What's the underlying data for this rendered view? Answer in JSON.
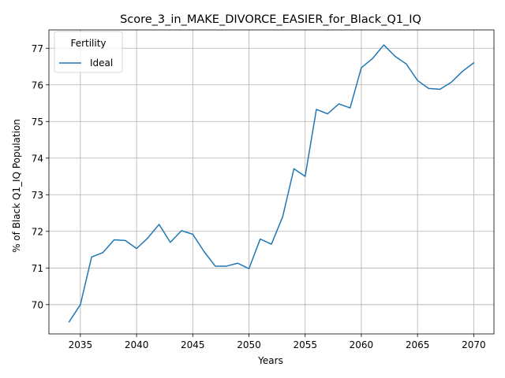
{
  "chart_data": {
    "type": "line",
    "title": "Score_3_in_MAKE_DIVORCE_EASIER_for_Black_Q1_IQ",
    "xlabel": "Years",
    "ylabel": "% of Black Q1_IQ Population",
    "xlim": [
      2032.2,
      2071.8
    ],
    "ylim": [
      69.2,
      77.5
    ],
    "xticks": [
      2035,
      2040,
      2045,
      2050,
      2055,
      2060,
      2065,
      2070
    ],
    "yticks": [
      70,
      71,
      72,
      73,
      74,
      75,
      76,
      77
    ],
    "grid": true,
    "legend": {
      "title": "Fertility",
      "placement": "top-left"
    },
    "series": [
      {
        "name": "Ideal",
        "color": "#1f77b4",
        "x": [
          2034,
          2035,
          2036,
          2037,
          2038,
          2039,
          2040,
          2041,
          2042,
          2043,
          2044,
          2045,
          2046,
          2047,
          2048,
          2049,
          2050,
          2051,
          2052,
          2053,
          2054,
          2055,
          2056,
          2057,
          2058,
          2059,
          2060,
          2061,
          2062,
          2063,
          2064,
          2065,
          2066,
          2067,
          2068,
          2069,
          2070
        ],
        "y": [
          69.53,
          70.0,
          71.3,
          71.42,
          71.77,
          71.75,
          71.53,
          71.82,
          72.19,
          71.7,
          72.02,
          71.92,
          71.45,
          71.05,
          71.05,
          71.13,
          70.98,
          71.79,
          71.65,
          72.4,
          73.71,
          73.5,
          75.33,
          75.21,
          75.48,
          75.37,
          76.47,
          76.72,
          77.09,
          76.78,
          76.57,
          76.12,
          75.9,
          75.88,
          76.07,
          76.37,
          76.6
        ]
      }
    ]
  }
}
